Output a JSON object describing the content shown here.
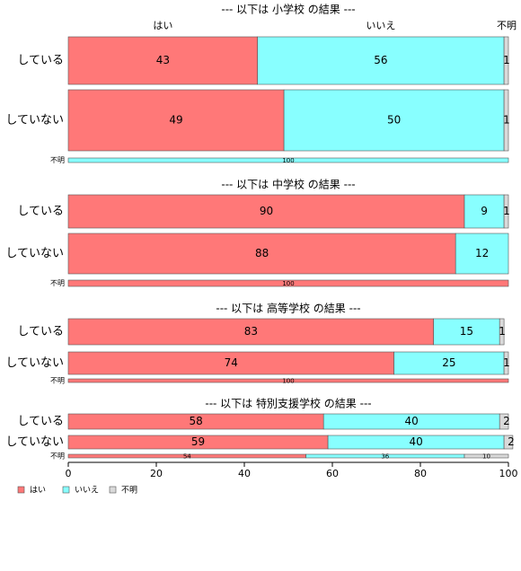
{
  "chart_data": {
    "type": "bar",
    "orientation": "horizontal",
    "stacked": "percent",
    "xlim": [
      0,
      100
    ],
    "xticks": [
      0,
      20,
      40,
      60,
      80,
      100
    ],
    "legend_position": "bottom-left",
    "grid": false,
    "top_category_labels": [
      "はい",
      "いいえ",
      "不明"
    ],
    "legend": [
      {
        "name": "はい",
        "color": "#ff7878"
      },
      {
        "name": "いいえ",
        "color": "#88ffff"
      },
      {
        "name": "不明",
        "color": "#d9d9d9"
      }
    ],
    "panels": [
      {
        "title": "--- 以下は 小学校 の結果 ---",
        "rows": [
          {
            "label": "している",
            "values": [
              43,
              56,
              1
            ],
            "labels": [
              "43",
              "56",
              "1"
            ]
          },
          {
            "label": "していない",
            "values": [
              49,
              50,
              1
            ],
            "labels": [
              "49",
              "50",
              "1"
            ]
          },
          {
            "label": "不明",
            "values": [
              0,
              100,
              0
            ],
            "labels": [
              "",
              "100",
              ""
            ]
          }
        ]
      },
      {
        "title": "--- 以下は 中学校 の結果 ---",
        "rows": [
          {
            "label": "している",
            "values": [
              90,
              9,
              1
            ],
            "labels": [
              "90",
              "9",
              "1"
            ]
          },
          {
            "label": "していない",
            "values": [
              88,
              12,
              0
            ],
            "labels": [
              "88",
              "12",
              ""
            ]
          },
          {
            "label": "不明",
            "values": [
              100,
              0,
              0
            ],
            "labels": [
              "100",
              "",
              ""
            ]
          }
        ]
      },
      {
        "title": "--- 以下は 高等学校 の結果 ---",
        "rows": [
          {
            "label": "している",
            "values": [
              83,
              15,
              1
            ],
            "labels": [
              "83",
              "15",
              "1"
            ]
          },
          {
            "label": "していない",
            "values": [
              74,
              25,
              1
            ],
            "labels": [
              "74",
              "25",
              "1"
            ]
          },
          {
            "label": "不明",
            "values": [
              100,
              0,
              0
            ],
            "labels": [
              "100",
              "",
              ""
            ]
          }
        ]
      },
      {
        "title": "--- 以下は 特別支援学校 の結果 ---",
        "rows": [
          {
            "label": "している",
            "values": [
              58,
              40,
              2
            ],
            "labels": [
              "58",
              "40",
              "2"
            ]
          },
          {
            "label": "していない",
            "values": [
              59,
              40,
              2
            ],
            "labels": [
              "59",
              "40",
              "2"
            ]
          },
          {
            "label": "不明",
            "values": [
              54,
              36,
              10
            ],
            "labels": [
              "54",
              "36",
              "10"
            ]
          }
        ]
      }
    ]
  }
}
